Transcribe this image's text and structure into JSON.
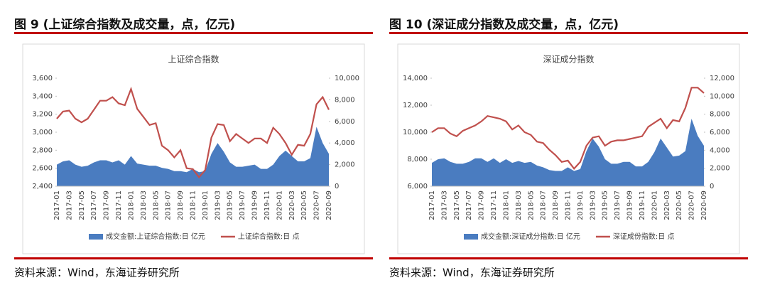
{
  "chart_data": [
    {
      "type": "line",
      "heading": "图 9  (上证综合指数及成交量，点，亿元)",
      "title": "上证综合指数",
      "source": "资料来源：Wind，东海证券研究所",
      "categories": [
        "2017-01",
        null,
        "2017-03",
        null,
        "2017-05",
        null,
        "2017-07",
        null,
        "2017-09",
        null,
        "2017-11",
        null,
        "2018-01",
        null,
        "2018-03",
        null,
        "2018-05",
        null,
        "2018-07",
        null,
        "2018-09",
        null,
        "2018-11",
        null,
        "2019-01",
        null,
        "2019-03",
        null,
        "2019-05",
        null,
        "2019-07",
        null,
        "2019-09",
        null,
        "2019-11",
        null,
        "2020-01",
        null,
        "2020-03",
        null,
        "2020-05",
        null,
        "2020-07",
        null,
        "2020-09"
      ],
      "series": [
        {
          "name": "成交金额:上证综合指数:日 亿元",
          "color": "#4a7cc0",
          "type": "area",
          "axis": "y2",
          "values": [
            2000,
            2300,
            2400,
            2000,
            1800,
            1900,
            2200,
            2400,
            2400,
            2200,
            2400,
            2000,
            2800,
            2100,
            2000,
            1900,
            1900,
            1700,
            1600,
            1400,
            1400,
            1300,
            1600,
            1300,
            1400,
            3000,
            4000,
            3200,
            2200,
            1800,
            1800,
            1900,
            2000,
            1600,
            1600,
            2000,
            2800,
            3300,
            2800,
            2300,
            2300,
            2600,
            5500,
            4000,
            3000
          ]
        },
        {
          "name": "上证综合指数:日 点",
          "color": "#c0504d",
          "type": "line",
          "values": [
            3150,
            3230,
            3240,
            3150,
            3110,
            3150,
            3250,
            3350,
            3350,
            3390,
            3320,
            3300,
            3480,
            3260,
            3170,
            3080,
            3100,
            2850,
            2800,
            2720,
            2800,
            2600,
            2590,
            2500,
            2580,
            2940,
            3090,
            3080,
            2900,
            2980,
            2930,
            2880,
            2930,
            2930,
            2880,
            3050,
            2980,
            2880,
            2750,
            2860,
            2850,
            2980,
            3310,
            3390,
            3250
          ]
        }
      ],
      "ylim": [
        2400,
        3600
      ],
      "yticks": [
        {
          "value": 2400,
          "label": "2,400"
        },
        {
          "value": 2600,
          "label": "2,600"
        },
        {
          "value": 2800,
          "label": "2,800"
        },
        {
          "value": 3000,
          "label": "3,000"
        },
        {
          "value": 3200,
          "label": "3,200"
        },
        {
          "value": 3400,
          "label": "3,400"
        },
        {
          "value": 3600,
          "label": "3,600"
        }
      ],
      "y2lim": [
        0,
        10000
      ],
      "y2ticks": [
        0,
        {
          "value": 2000,
          "label": "2,000"
        },
        {
          "value": 4000,
          "label": "4,000"
        },
        {
          "value": 6000,
          "label": "6,000"
        },
        {
          "value": 8000,
          "label": "8,000"
        },
        {
          "value": 10000,
          "label": "10,000"
        }
      ],
      "legend": "bottom"
    },
    {
      "type": "line",
      "heading": "图 10  (深证成分指数及成交量，点，亿元)",
      "title": "深证成分指数",
      "source": "资料来源：Wind，东海证券研究所",
      "categories": [
        "2017-01",
        null,
        "2017-03",
        null,
        "2017-05",
        null,
        "2017-07",
        null,
        "2017-09",
        null,
        "2017-11",
        null,
        "2018-01",
        null,
        "2018-03",
        null,
        "2018-05",
        null,
        "2018-07",
        null,
        "2018-09",
        null,
        "2018-11",
        null,
        "2019-01",
        null,
        "2019-03",
        null,
        "2019-05",
        null,
        "2019-07",
        null,
        "2019-09",
        null,
        "2019-11",
        null,
        "2020-01",
        null,
        "2020-03",
        null,
        "2020-05",
        null,
        "2020-07",
        null,
        "2020-09"
      ],
      "series": [
        {
          "name": "成交金额:深证成分指数:日 亿元",
          "color": "#4a7cc0",
          "type": "area",
          "axis": "y2",
          "values": [
            2600,
            3000,
            3100,
            2700,
            2500,
            2500,
            2700,
            3100,
            3100,
            2700,
            3100,
            2600,
            3000,
            2600,
            2800,
            2600,
            2700,
            2300,
            2100,
            1800,
            1700,
            1700,
            2100,
            1700,
            1900,
            3900,
            5300,
            4400,
            3000,
            2500,
            2500,
            2700,
            2700,
            2200,
            2200,
            2700,
            3800,
            5300,
            4300,
            3300,
            3400,
            3900,
            7500,
            5600,
            4500
          ]
        },
        {
          "name": "深证成份指数:日 点",
          "color": "#c0504d",
          "type": "line",
          "values": [
            10000,
            10300,
            10300,
            9900,
            9700,
            10100,
            10300,
            10500,
            10800,
            11200,
            11100,
            11000,
            10800,
            10200,
            10500,
            10000,
            9800,
            9300,
            9200,
            8700,
            8300,
            7800,
            7900,
            7300,
            7800,
            9000,
            9600,
            9700,
            9000,
            9300,
            9400,
            9400,
            9500,
            9600,
            9700,
            10400,
            10700,
            11000,
            10300,
            10900,
            10800,
            11800,
            13300,
            13300,
            12900
          ]
        }
      ],
      "ylim": [
        6000,
        14000
      ],
      "yticks": [
        {
          "value": 6000,
          "label": "6,000"
        },
        {
          "value": 8000,
          "label": "8,000"
        },
        {
          "value": 10000,
          "label": "10,000"
        },
        {
          "value": 12000,
          "label": "12,000"
        },
        {
          "value": 14000,
          "label": "14,000"
        }
      ],
      "y2lim": [
        0,
        12000
      ],
      "y2ticks": [
        0,
        {
          "value": 2000,
          "label": "2,000"
        },
        {
          "value": 4000,
          "label": "4,000"
        },
        {
          "value": 6000,
          "label": "6,000"
        },
        {
          "value": 8000,
          "label": "8,000"
        },
        {
          "value": 10000,
          "label": "10,000"
        },
        {
          "value": 12000,
          "label": "12,000"
        }
      ],
      "legend": "bottom"
    }
  ]
}
